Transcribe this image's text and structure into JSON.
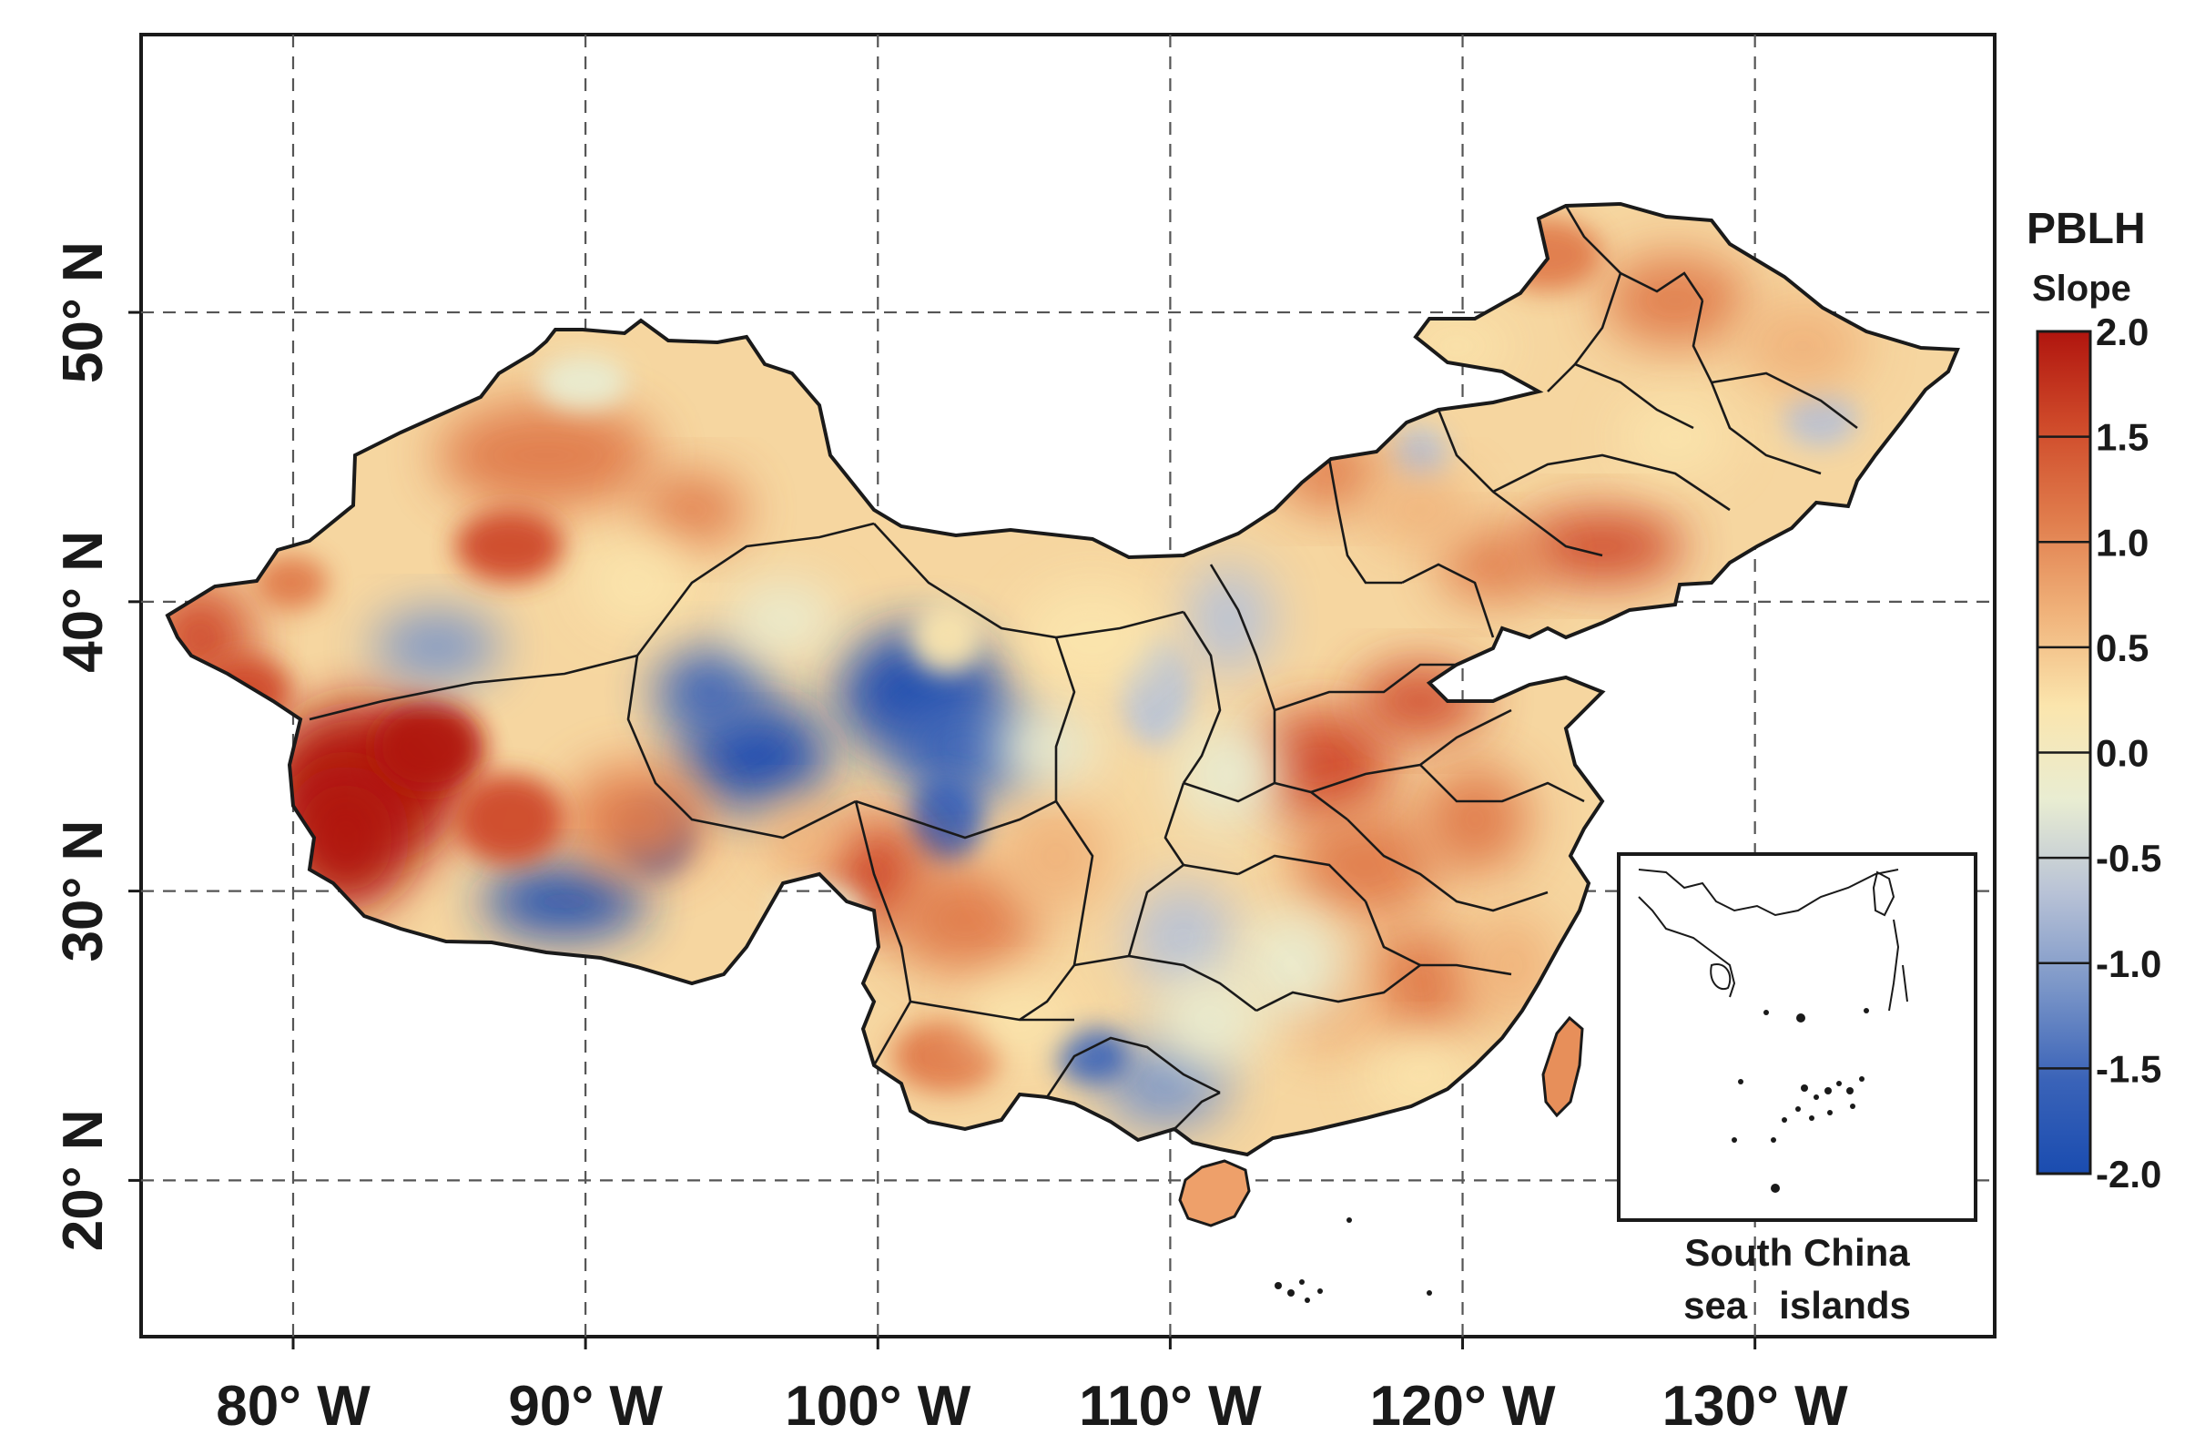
{
  "map": {
    "lon_ticks": [
      80,
      90,
      100,
      110,
      120,
      130
    ],
    "lon_labels": [
      "80° W",
      "90° W",
      "100° W",
      "110° W",
      "120° W",
      "130° W"
    ],
    "lat_ticks": [
      20,
      30,
      40,
      50
    ],
    "lat_labels": [
      "20° N",
      "30° N",
      "40° N",
      "50° N"
    ],
    "lon_range": [
      74.8,
      138.2
    ],
    "lat_range": [
      14.6,
      59.6
    ],
    "gridlines": "dashed"
  },
  "legend": {
    "title": "PBLH",
    "subtitle": "Slope",
    "ticks": [
      2.0,
      1.5,
      1.0,
      0.5,
      0.0,
      -0.5,
      -1.0,
      -1.5,
      -2.0
    ],
    "tick_labels": [
      "2.0",
      "1.5",
      "1.0",
      "0.5",
      "0.0",
      "-0.5",
      "-1.0",
      "-1.5",
      "-2.0"
    ],
    "colors": [
      "#b0150e",
      "#cf4a2a",
      "#e07c4c",
      "#f0b27a",
      "#fbe5ad",
      "#e9edd2",
      "#b8c2d6",
      "#7b96c8",
      "#3a63b8",
      "#1a4cb0"
    ],
    "placement": "right"
  },
  "inset": {
    "label_line1": "South China",
    "label_line2": "sea   islands"
  },
  "colors": {
    "land_base": "#f6d6a0",
    "border": "#1a1a1a"
  }
}
